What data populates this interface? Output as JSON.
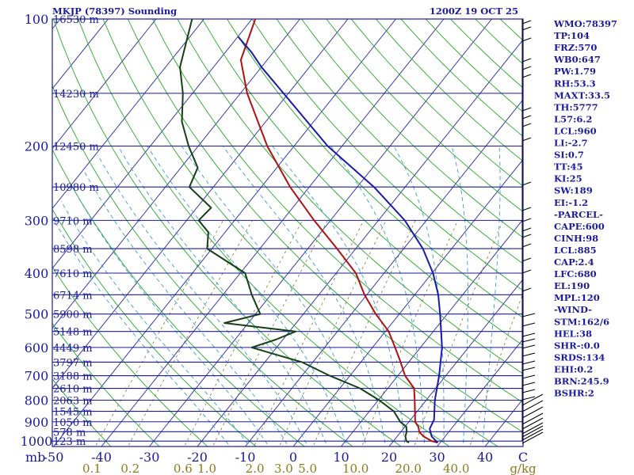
{
  "header": {
    "station": "MKJP (78397) Sounding",
    "time": "1200Z 19 OCT 25"
  },
  "chart_data": {
    "type": "line",
    "title": "MKJP (78397) Sounding",
    "subtitle": "1200Z 19 OCT 25",
    "x_unit": "C",
    "mixing_unit": "g/kg",
    "ylabel": "mb",
    "ylim": [
      1000,
      100
    ],
    "xlim": [
      -50,
      50
    ],
    "pressure_ticks": [
      100,
      200,
      300,
      400,
      500,
      600,
      700,
      800,
      900,
      1000
    ],
    "temp_ticks": [
      -50,
      -40,
      -30,
      -20,
      -10,
      0,
      10,
      20,
      30,
      40
    ],
    "mixing_ticks": [
      {
        "label": "0.1",
        "t": -42
      },
      {
        "label": "0.2",
        "t": -34
      },
      {
        "label": "0.6",
        "t": -23
      },
      {
        "label": "1.0",
        "t": -18
      },
      {
        "label": "2.0",
        "t": -8
      },
      {
        "label": "3.0",
        "t": -2
      },
      {
        "label": "5.0",
        "t": 3
      },
      {
        "label": "10.0",
        "t": 13
      },
      {
        "label": "20.0",
        "t": 24
      },
      {
        "label": "40.0",
        "t": 34
      }
    ],
    "height_levels": [
      {
        "p": 100,
        "label": "16530 m"
      },
      {
        "p": 150,
        "label": "14230 m"
      },
      {
        "p": 200,
        "label": "12450 m"
      },
      {
        "p": 250,
        "label": "10980 m"
      },
      {
        "p": 300,
        "label": "9710 m"
      },
      {
        "p": 350,
        "label": "8598 m"
      },
      {
        "p": 400,
        "label": "7610 m"
      },
      {
        "p": 450,
        "label": "6714 m"
      },
      {
        "p": 500,
        "label": "5900 m"
      },
      {
        "p": 550,
        "label": "5148 m"
      },
      {
        "p": 600,
        "label": "4449 m"
      },
      {
        "p": 650,
        "label": "3797 m"
      },
      {
        "p": 700,
        "label": "3188 m"
      },
      {
        "p": 750,
        "label": "2610 m"
      },
      {
        "p": 800,
        "label": "2063 m"
      },
      {
        "p": 850,
        "label": "1545 m"
      },
      {
        "p": 900,
        "label": "1050 m"
      },
      {
        "p": 950,
        "label": "578 m"
      },
      {
        "p": 1000,
        "label": "123 m"
      }
    ],
    "series": [
      {
        "color": "#b01010",
        "points": [
          [
            1009,
            29.5
          ],
          [
            1000,
            28
          ],
          [
            975,
            25.5
          ],
          [
            950,
            23.8
          ],
          [
            925,
            22.8
          ],
          [
            900,
            21.3
          ],
          [
            850,
            19.5
          ],
          [
            800,
            17.6
          ],
          [
            750,
            15.5
          ],
          [
            700,
            11.5
          ],
          [
            650,
            8.3
          ],
          [
            600,
            4.7
          ],
          [
            550,
            0.7
          ],
          [
            500,
            -4.9
          ],
          [
            450,
            -10.5
          ],
          [
            400,
            -15.9
          ],
          [
            350,
            -23.9
          ],
          [
            300,
            -33.4
          ],
          [
            250,
            -44.0
          ],
          [
            200,
            -55.6
          ],
          [
            150,
            -68.6
          ],
          [
            125,
            -75.5
          ],
          [
            100,
            -79.3
          ]
        ]
      },
      {
        "color": "#154015",
        "points": [
          [
            1009,
            23.5
          ],
          [
            1000,
            22.7
          ],
          [
            975,
            21.7
          ],
          [
            950,
            21.2
          ],
          [
            925,
            20.3
          ],
          [
            900,
            18.2
          ],
          [
            850,
            15.1
          ],
          [
            800,
            10.2
          ],
          [
            750,
            4.2
          ],
          [
            700,
            -4.2
          ],
          [
            650,
            -12.3
          ],
          [
            600,
            -25.2
          ],
          [
            575,
            -21.5
          ],
          [
            550,
            -18.7
          ],
          [
            525,
            -35.0
          ],
          [
            500,
            -29.0
          ],
          [
            450,
            -34.0
          ],
          [
            400,
            -39.0
          ],
          [
            350,
            -51.0
          ],
          [
            320,
            -53.5
          ],
          [
            300,
            -57.5
          ],
          [
            280,
            -57.0
          ],
          [
            250,
            -65.0
          ],
          [
            225,
            -66.5
          ],
          [
            200,
            -72.0
          ],
          [
            175,
            -77.5
          ],
          [
            150,
            -82.0
          ],
          [
            130,
            -87.0
          ],
          [
            110,
            -90.5
          ],
          [
            100,
            -92.5
          ]
        ]
      },
      {
        "color": "#1a1aaa",
        "points": [
          [
            1009,
            29.5
          ],
          [
            975,
            27.2
          ],
          [
            935,
            25.5
          ],
          [
            890,
            24.9
          ],
          [
            800,
            21.8
          ],
          [
            700,
            18.6
          ],
          [
            600,
            14.5
          ],
          [
            500,
            8.5
          ],
          [
            450,
            4.9
          ],
          [
            400,
            0.2
          ],
          [
            350,
            -6.0
          ],
          [
            300,
            -14.5
          ],
          [
            250,
            -26.5
          ],
          [
            200,
            -43.0
          ],
          [
            150,
            -61.0
          ],
          [
            130,
            -70.0
          ],
          [
            120,
            -74.5
          ],
          [
            110,
            -80.0
          ]
        ]
      }
    ]
  },
  "indices": [
    "WMO:78397",
    "TP:104",
    "FRZ:570",
    "WB0:647",
    "PW:1.79",
    "RH:53.3",
    "MAXT:33.5",
    "TH:5777",
    "L57:6.2",
    "LCL:960",
    "LI:-2.7",
    "SI:0.7",
    "TT:45",
    "KI:25",
    "SW:189",
    "EI:-1.2",
    "-PARCEL-",
    "CAPE:600",
    "CINH:98",
    "LCL:885",
    "CAP:2.4",
    "LFC:680",
    "EL:190",
    "MPL:120",
    "-WIND-",
    "STM:162/6",
    "HEL:38",
    "SHR-:0.0",
    "SRDS:134",
    "EHI:0.2",
    "BRN:245.9",
    "BSHR:2"
  ],
  "colors": {
    "isobar": "#1b1b9a",
    "isotherm": "#2828a8",
    "dry_adiabat": "#27a827",
    "moist_adiabat": "#3a9ad8",
    "mixing_ratio": "#7a7a2a",
    "wind": "#000000"
  }
}
